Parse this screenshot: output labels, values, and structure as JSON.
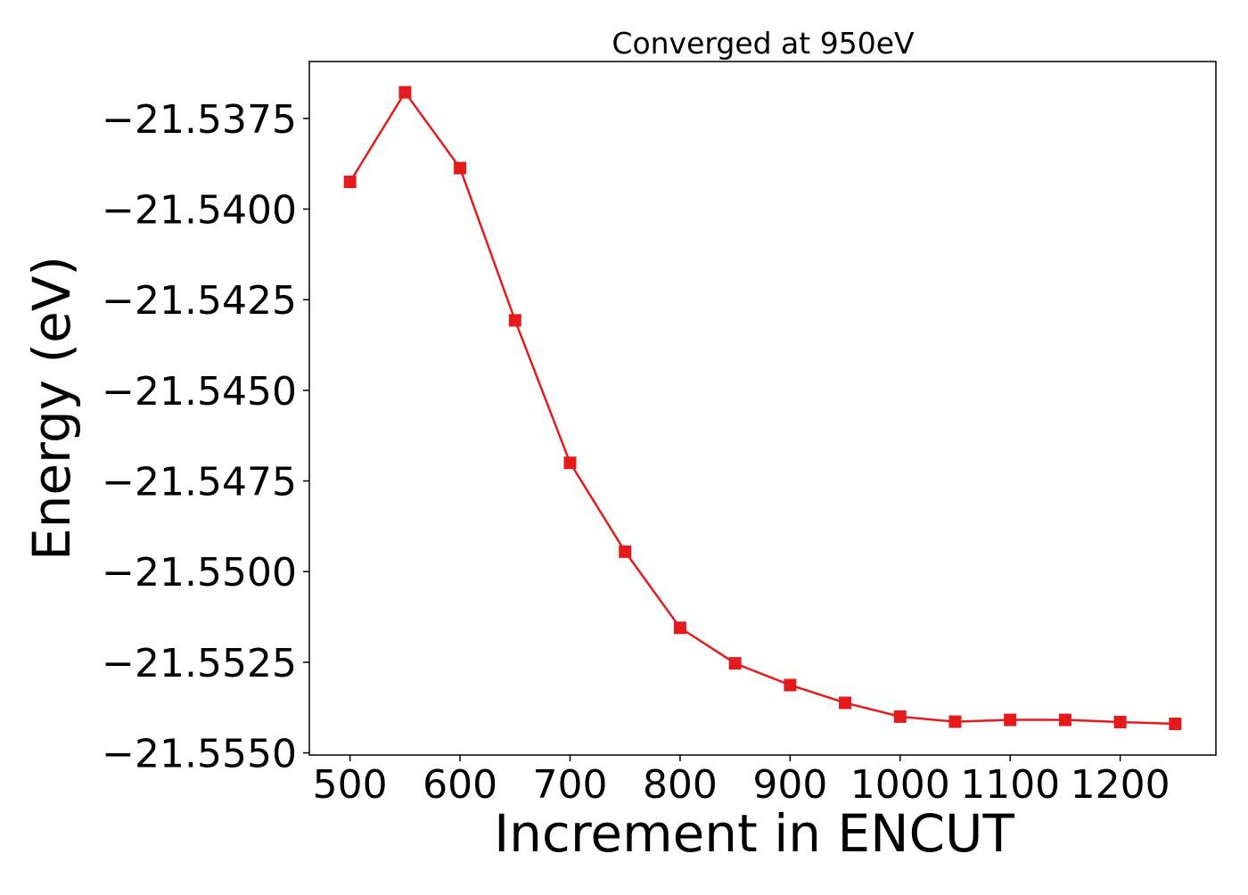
{
  "chart_data": {
    "type": "line",
    "title": "Converged at 950eV",
    "xlabel": "Increment in ENCUT",
    "ylabel": "Energy (eV)",
    "x": [
      500,
      550,
      600,
      650,
      700,
      750,
      800,
      850,
      900,
      950,
      1000,
      1050,
      1100,
      1150,
      1200,
      1250
    ],
    "series": [
      {
        "values": [
          -21.53925,
          -21.53678,
          -21.53887,
          -21.54307,
          -21.547,
          -21.54945,
          -21.55155,
          -21.55253,
          -21.55313,
          -21.55362,
          -21.554,
          -21.55414,
          -21.55409,
          -21.55409,
          -21.55415,
          -21.5542
        ],
        "color": "#e41a1c",
        "marker": "square"
      }
    ],
    "xticks": [
      500,
      600,
      700,
      800,
      900,
      1000,
      1100,
      1200
    ],
    "xtick_labels": [
      "500",
      "600",
      "700",
      "800",
      "900",
      "1000",
      "1100",
      "1200"
    ],
    "yticks": [
      -21.5375,
      -21.54,
      -21.5425,
      -21.545,
      -21.5475,
      -21.55,
      -21.5525,
      -21.555
    ],
    "ytick_labels": [
      "−21.5375",
      "−21.5400",
      "−21.5425",
      "−21.5450",
      "−21.5475",
      "−21.5500",
      "−21.5525",
      "−21.5550"
    ],
    "xlim": [
      463,
      1287
    ],
    "ylim": [
      -21.55506,
      -21.53593
    ],
    "grid": false,
    "legend": "none"
  }
}
